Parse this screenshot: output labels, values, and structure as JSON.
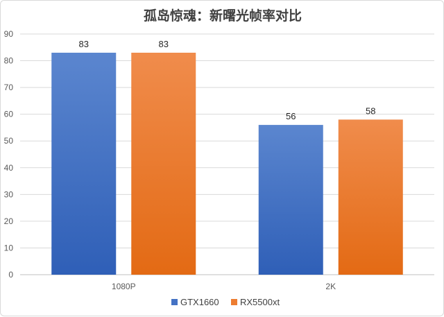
{
  "chart_data": {
    "type": "bar",
    "title": "孤岛惊魂：新曙光帧率对比",
    "categories": [
      "1080P",
      "2K"
    ],
    "series": [
      {
        "name": "GTX1660",
        "values": [
          83,
          56
        ],
        "color": "#4472c4"
      },
      {
        "name": "RX5500xt",
        "values": [
          83,
          58
        ],
        "color": "#ed7d31"
      }
    ],
    "ylim": [
      0,
      90
    ],
    "yticks": [
      0,
      10,
      20,
      30,
      40,
      50,
      60,
      70,
      80,
      90
    ],
    "grid": true,
    "legend_position": "bottom",
    "data_labels": true
  }
}
